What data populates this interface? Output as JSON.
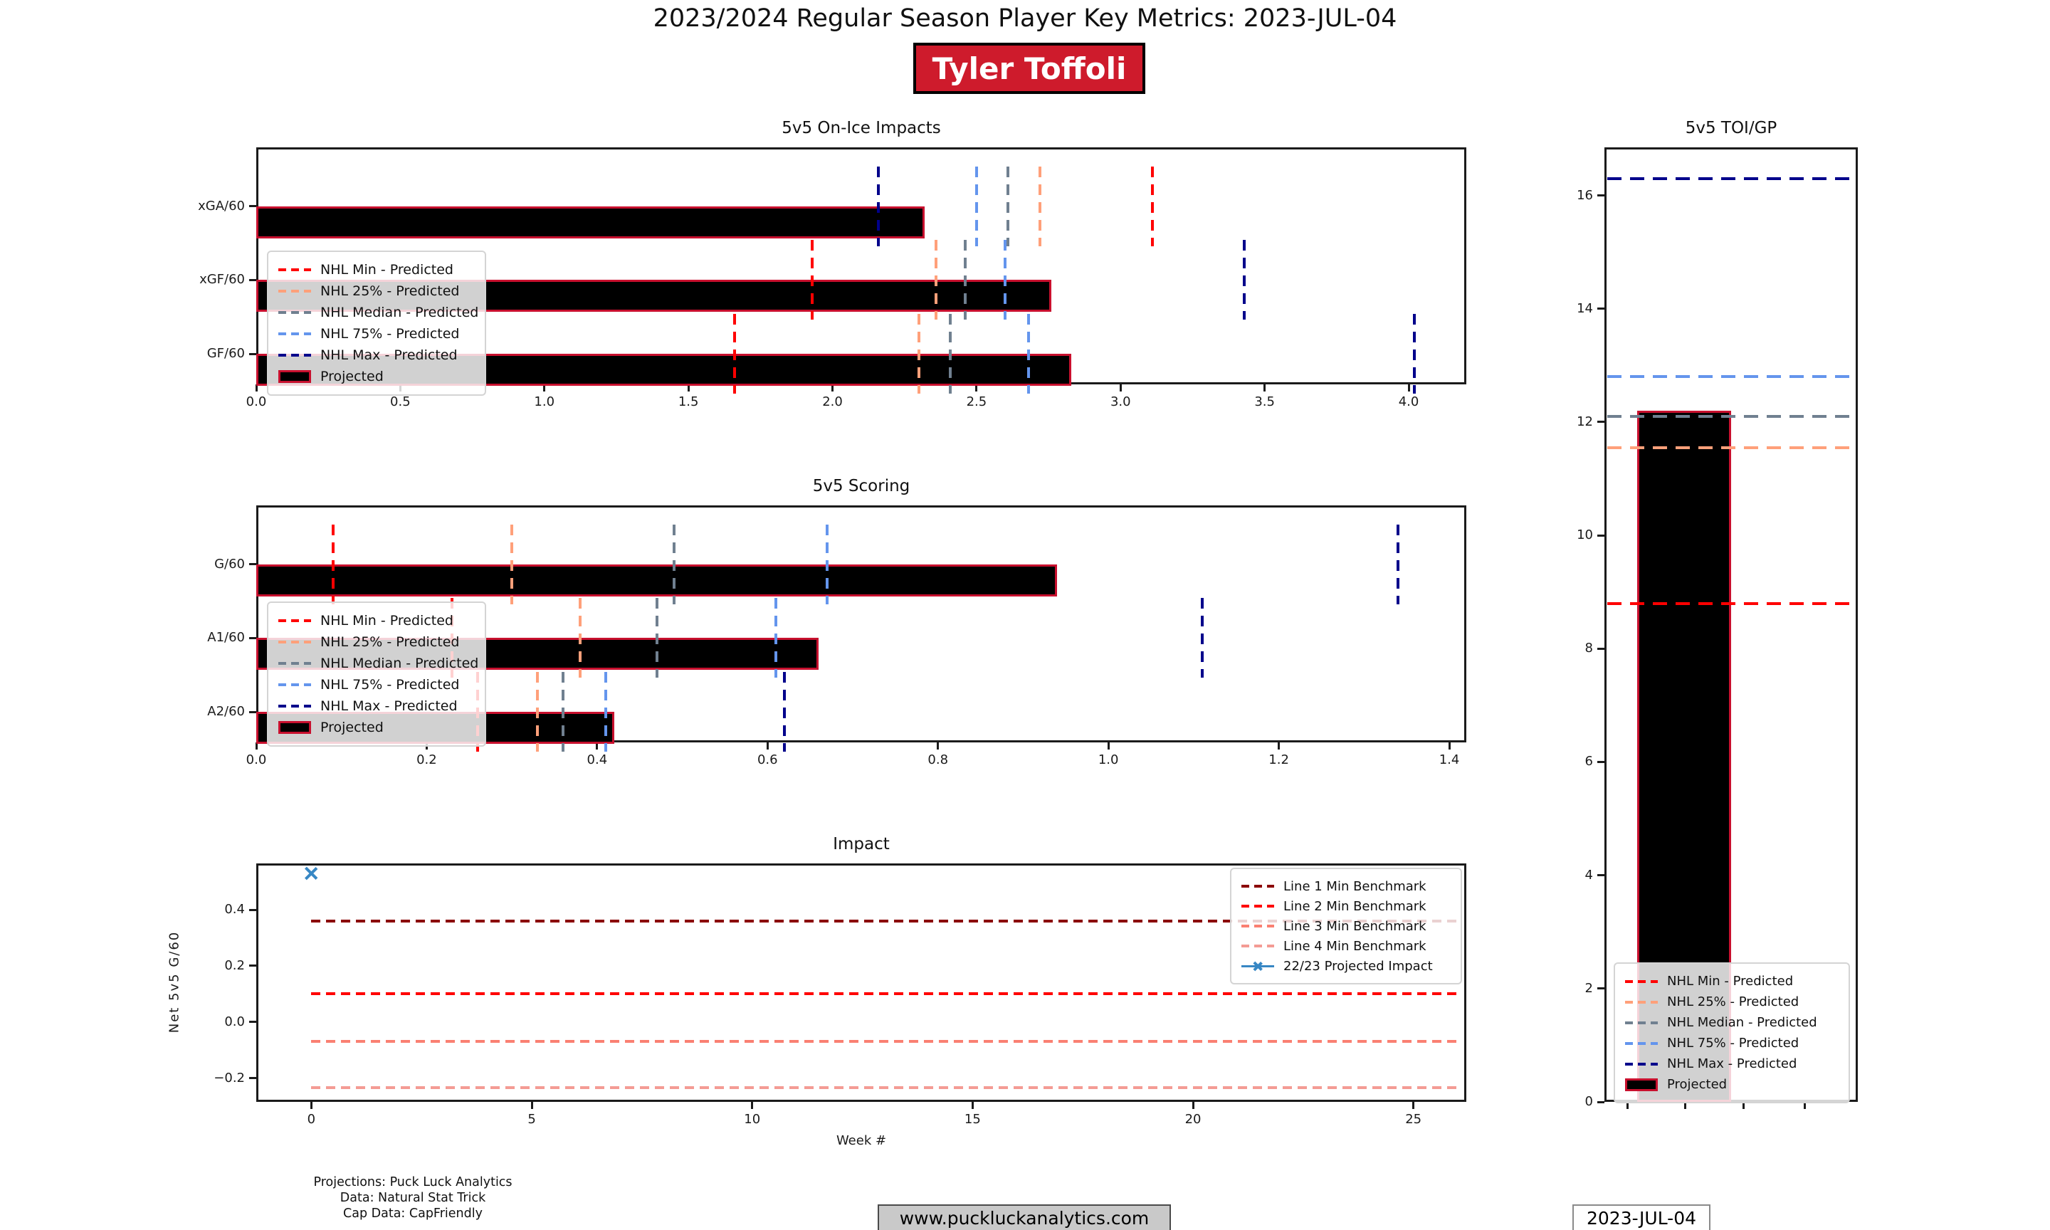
{
  "header": {
    "title": "2023/2024 Regular Season Player Key Metrics: 2023-JUL-04",
    "player_name": "Tyler Toffoli",
    "badge_bg": "#CE1B2C"
  },
  "quantile_styles": [
    {
      "key": "min",
      "label": "NHL Min - Predicted",
      "color": "#FF0000"
    },
    {
      "key": "p25",
      "label": "NHL 25% - Predicted",
      "color": "#FFA07A"
    },
    {
      "key": "median",
      "label": "NHL Median - Predicted",
      "color": "#708090"
    },
    {
      "key": "p75",
      "label": "NHL 75% - Predicted",
      "color": "#6495ED"
    },
    {
      "key": "max",
      "label": "NHL Max - Predicted",
      "color": "#00008B"
    }
  ],
  "projected_style": {
    "label": "Projected",
    "fill": "#000000",
    "edge": "#C8102E"
  },
  "chart_data": [
    {
      "id": "on_ice",
      "type": "bar",
      "orientation": "horizontal",
      "title": "5v5 On-Ice Impacts",
      "categories": [
        "xGA/60",
        "xGF/60",
        "GF/60"
      ],
      "projected": [
        2.32,
        2.76,
        2.83
      ],
      "xlim": [
        0,
        4.2
      ],
      "xticks": [
        "0.0",
        "0.5",
        "1.0",
        "1.5",
        "2.0",
        "2.5",
        "3.0",
        "3.5",
        "4.0"
      ],
      "xtick_values": [
        0,
        0.5,
        1,
        1.5,
        2,
        2.5,
        3,
        3.5,
        4
      ],
      "quantiles": {
        "min": [
          3.11,
          1.93,
          1.66
        ],
        "p25": [
          2.72,
          2.36,
          2.3
        ],
        "median": [
          2.61,
          2.46,
          2.41
        ],
        "p75": [
          2.5,
          2.6,
          2.68
        ],
        "max": [
          2.16,
          3.43,
          4.02
        ]
      },
      "legend_position": "lower left",
      "grid": false
    },
    {
      "id": "scoring",
      "type": "bar",
      "orientation": "horizontal",
      "title": "5v5 Scoring",
      "categories": [
        "G/60",
        "A1/60",
        "A2/60"
      ],
      "projected": [
        0.94,
        0.66,
        0.42
      ],
      "xlim": [
        0,
        1.42
      ],
      "xticks": [
        "0.0",
        "0.2",
        "0.4",
        "0.6",
        "0.8",
        "1.0",
        "1.2",
        "1.4"
      ],
      "xtick_values": [
        0,
        0.2,
        0.4,
        0.6,
        0.8,
        1.0,
        1.2,
        1.4
      ],
      "quantiles": {
        "min": [
          0.09,
          0.23,
          0.26
        ],
        "p25": [
          0.3,
          0.38,
          0.33
        ],
        "median": [
          0.49,
          0.47,
          0.36
        ],
        "p75": [
          0.67,
          0.61,
          0.41
        ],
        "max": [
          1.34,
          1.11,
          0.62
        ]
      },
      "legend_position": "lower left",
      "grid": false
    },
    {
      "id": "impact",
      "type": "line",
      "title": "Impact",
      "xlabel": "Week #",
      "ylabel": "Net 5v5 G/60",
      "xlim": [
        -1.25,
        26.2
      ],
      "ylim": [
        -0.285,
        0.565
      ],
      "xticks": [
        "0",
        "5",
        "10",
        "15",
        "20",
        "25"
      ],
      "xtick_values": [
        0,
        5,
        10,
        15,
        20,
        25
      ],
      "yticks": [
        "0.4",
        "0.2",
        "0.0",
        "−0.2"
      ],
      "ytick_values": [
        0.4,
        0.2,
        0.0,
        -0.2
      ],
      "benchmarks": [
        {
          "label": "Line 1 Min Benchmark",
          "color": "#8B0000",
          "value": 0.36
        },
        {
          "label": "Line 2 Min Benchmark",
          "color": "#FF0000",
          "value": 0.1
        },
        {
          "label": "Line 3 Min Benchmark",
          "color": "#FA8072",
          "value": -0.07
        },
        {
          "label": "Line 4 Min Benchmark",
          "color": "#F49B94",
          "value": -0.235
        }
      ],
      "benchmark_span": [
        0,
        26
      ],
      "series": [
        {
          "name": "22/23 Projected Impact",
          "color": "#3787C4",
          "marker": "x",
          "points": [
            [
              0,
              0.53
            ]
          ]
        }
      ],
      "legend_position": "upper right",
      "grid": false
    },
    {
      "id": "toi",
      "type": "bar",
      "orientation": "vertical",
      "title": "5v5 TOI/GP",
      "categories": [
        "Projected"
      ],
      "projected": 12.2,
      "ylim": [
        0,
        16.85
      ],
      "yticks": [
        "0",
        "2",
        "4",
        "6",
        "8",
        "10",
        "12",
        "14",
        "16"
      ],
      "ytick_values": [
        0,
        2,
        4,
        6,
        8,
        10,
        12,
        14,
        16
      ],
      "quantiles": {
        "min": 8.8,
        "p25": 11.55,
        "median": 12.1,
        "p75": 12.8,
        "max": 16.3
      },
      "legend_position": "lower center",
      "grid": false
    }
  ],
  "footer": {
    "credits": [
      "Projections: Puck Luck Analytics",
      "Data: Natural Stat Trick",
      "Cap Data: CapFriendly"
    ],
    "website": "www.puckluckanalytics.com",
    "date": "2023-JUL-04"
  }
}
